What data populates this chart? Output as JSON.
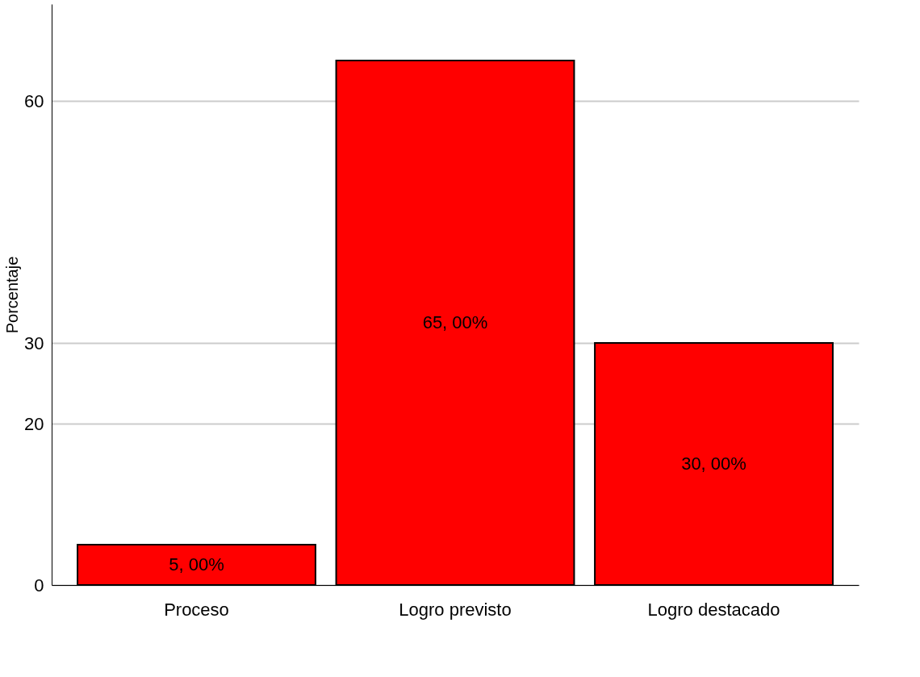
{
  "chart_data": {
    "type": "bar",
    "ylabel": "Porcentaje",
    "categories": [
      "Proceso",
      "Logro previsto",
      "Logro destacado"
    ],
    "values": [
      5,
      65,
      30
    ],
    "value_labels": [
      "5, 00%",
      "65, 00%",
      "30, 00%"
    ],
    "color": "#ff0000",
    "ylim": [
      0,
      72
    ],
    "yticks": [
      0,
      20,
      30,
      60
    ],
    "grid": "y"
  }
}
